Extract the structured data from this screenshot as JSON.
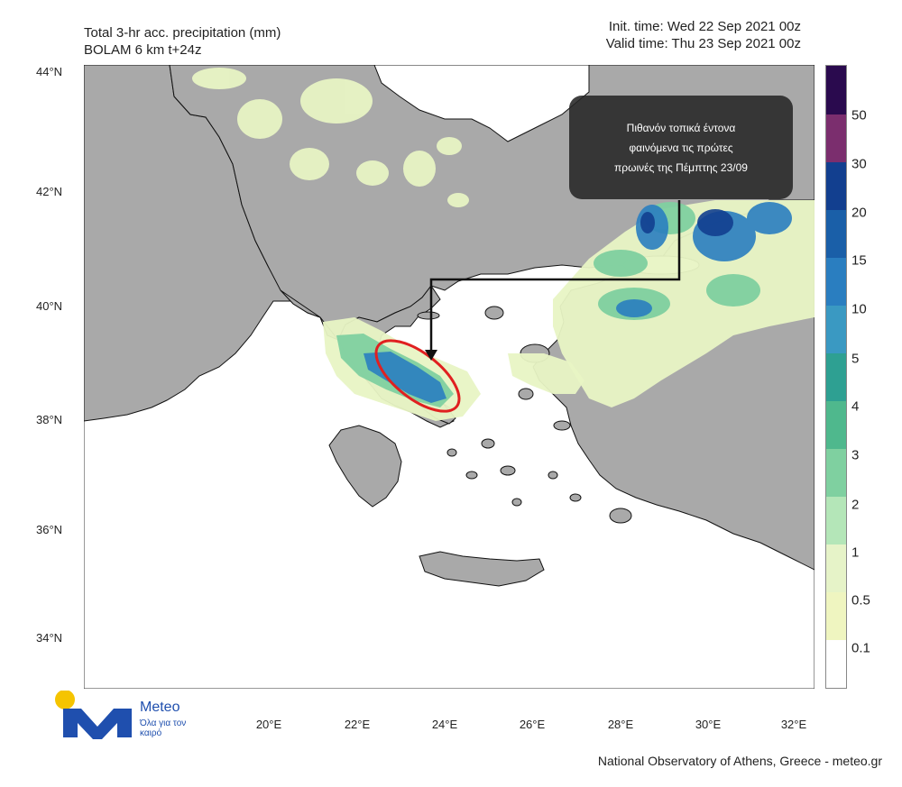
{
  "header": {
    "title_line1": "Total 3-hr acc. precipitation (mm)",
    "title_line2": "BOLAM 6 km t+24z",
    "init_time": "Init. time: Wed 22 Sep 2021 00z",
    "valid_time": "Valid time: Thu 23 Sep 2021 00z"
  },
  "axes": {
    "lat_labels": [
      "44°N",
      "42°N",
      "40°N",
      "38°N",
      "36°N",
      "34°N"
    ],
    "lon_labels": [
      "20°E",
      "22°E",
      "24°E",
      "26°E",
      "28°E",
      "30°E",
      "32°E"
    ]
  },
  "legend": {
    "labels": [
      "50",
      "30",
      "20",
      "15",
      "10",
      "5",
      "4",
      "3",
      "2",
      "1",
      "0.5",
      "0.1"
    ],
    "colors": [
      "#2a0a4e",
      "#7b2e6e",
      "#123f8f",
      "#1a5fa8",
      "#2a7ec0",
      "#3a99c2",
      "#2ea092",
      "#4fb88d",
      "#7fd0a0",
      "#b4e6b8",
      "#e6f3c8",
      "#eff5c0",
      "#ffffff"
    ]
  },
  "callout": {
    "line1": "Πιθανόν τοπικά έντονα",
    "line2": "φαινόμενα τις πρώτες",
    "line3": "πρωινές της Πέμπτης 23/09"
  },
  "logo": {
    "name": "Meteo",
    "tagline": "Όλα για τον καιρό"
  },
  "footer": {
    "credit": "National Observatory of Athens, Greece - meteo.gr"
  },
  "colors": {
    "land": "#a9a9a9",
    "sea": "#ffffff",
    "border": "#111111",
    "highlight_ellipse": "#e02020",
    "light_precip": "#e8f4c4",
    "mid_precip": "#7fd0a0",
    "heavy_precip": "#2a7ec0"
  }
}
